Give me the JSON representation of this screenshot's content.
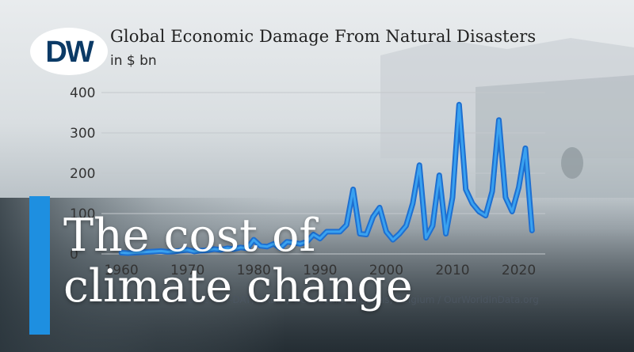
{
  "logo_text": "DW",
  "headline": "The cost of\nclimate change",
  "source": "Source: EM-DAT, CRED / UCLouvain, Brussels, Belgium / OurWorldInData.org",
  "colors": {
    "line": "#1e6fd0",
    "line_light": "#3aa2f0",
    "accent": "#1e8fe0",
    "logo_bg": "#ffffff",
    "logo_fg": "#0b3a66"
  },
  "chart_data": {
    "type": "line",
    "title": "Global Economic Damage From Natural Disasters",
    "subtitle": "in $ bn",
    "xlabel": "",
    "ylabel": "",
    "xlim": [
      1957,
      2024
    ],
    "ylim": [
      0,
      400
    ],
    "x_ticks": [
      1960,
      1970,
      1980,
      1990,
      2000,
      2010,
      2020
    ],
    "y_ticks": [
      0,
      100,
      200,
      300,
      400
    ],
    "grid": "horizontal",
    "series": [
      {
        "x": [
          1960,
          1961,
          1962,
          1963,
          1964,
          1965,
          1966,
          1967,
          1968,
          1969,
          1970,
          1971,
          1972,
          1973,
          1974,
          1975,
          1976,
          1977,
          1978,
          1979,
          1980,
          1981,
          1982,
          1983,
          1984,
          1985,
          1986,
          1987,
          1988,
          1989,
          1990,
          1991,
          1992,
          1993,
          1994,
          1995,
          1996,
          1997,
          1998,
          1999,
          2000,
          2001,
          2002,
          2003,
          2004,
          2005,
          2006,
          2007,
          2008,
          2009,
          2010,
          2011,
          2012,
          2013,
          2014,
          2015,
          2016,
          2017,
          2018,
          2019,
          2020,
          2021,
          2022
        ],
        "y": [
          3,
          2,
          3,
          4,
          5,
          6,
          7,
          5,
          6,
          8,
          10,
          6,
          8,
          9,
          12,
          10,
          14,
          12,
          16,
          14,
          35,
          20,
          18,
          25,
          15,
          30,
          28,
          25,
          30,
          48,
          38,
          55,
          55,
          55,
          72,
          160,
          50,
          48,
          92,
          115,
          55,
          35,
          50,
          70,
          125,
          220,
          40,
          70,
          195,
          50,
          140,
          370,
          160,
          125,
          105,
          95,
          155,
          332,
          140,
          105,
          165,
          262,
          58
        ]
      }
    ]
  }
}
